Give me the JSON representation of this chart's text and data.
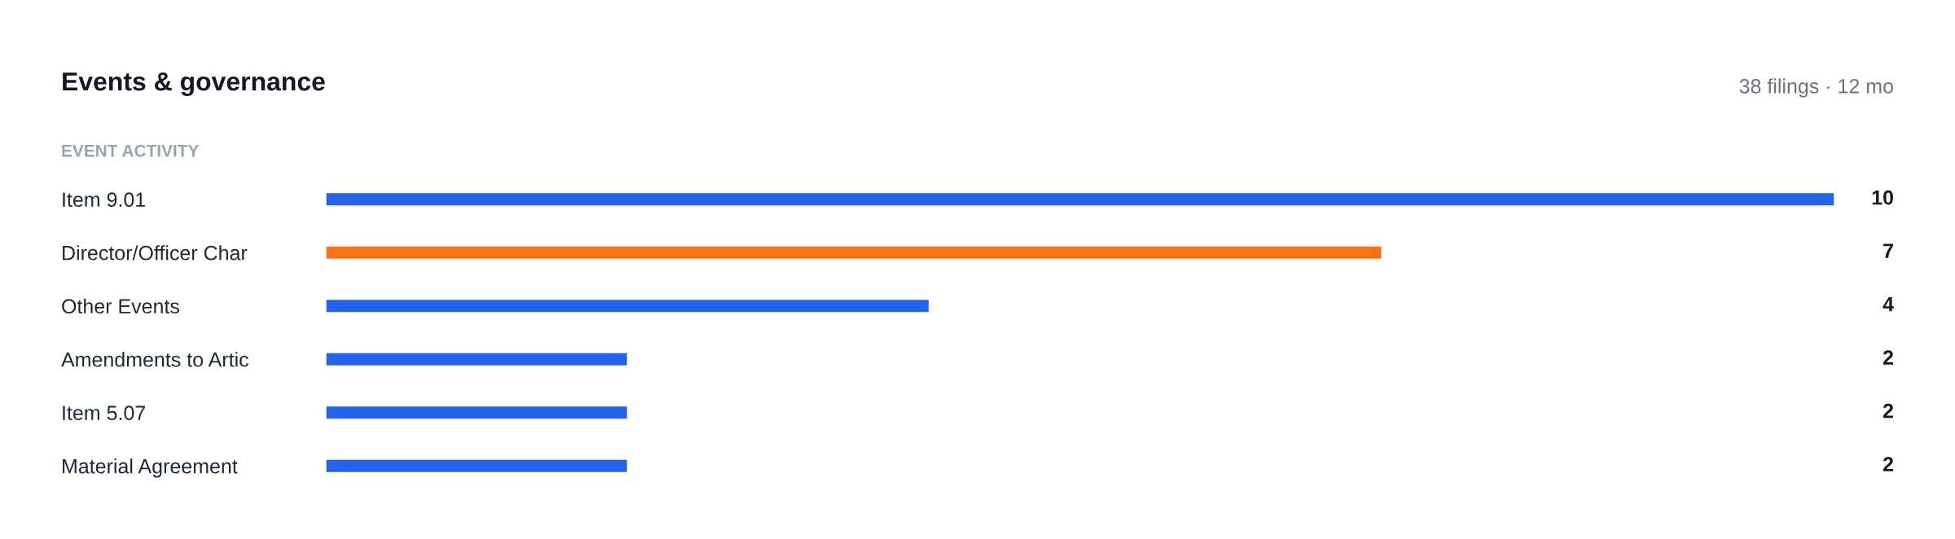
{
  "chart_data": {
    "type": "bar",
    "orientation": "horizontal",
    "title": "Events & governance",
    "subtitle": "38 filings · 12 mo",
    "annotations": [
      "EVENT ACTIVITY"
    ],
    "categories": [
      "Item 9.01",
      "Director/Officer Char",
      "Other Events",
      "Amendments to Artic",
      "Item 5.07",
      "Material Agreement"
    ],
    "values": [
      10,
      7,
      4,
      2,
      2,
      2
    ],
    "colors": [
      "#2563eb",
      "#f97316",
      "#2563eb",
      "#2563eb",
      "#2563eb",
      "#2563eb"
    ],
    "data_labels": true,
    "grid": false,
    "legend": false
  }
}
